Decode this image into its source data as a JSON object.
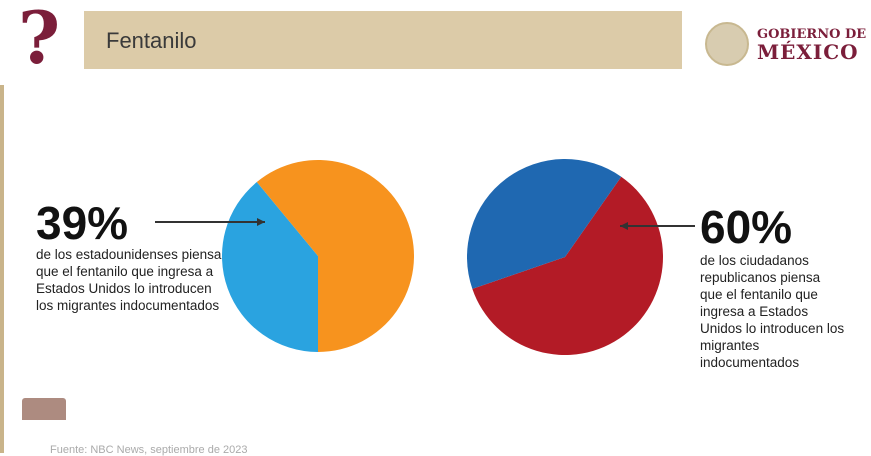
{
  "header": {
    "title": "Fentanilo",
    "logo_line1": "GOBIERNO DE",
    "logo_line2": "MÉXICO",
    "icon": "question-mark-icon"
  },
  "colors": {
    "blue": "#2aa3e0",
    "orange": "#f7931e",
    "navy_blue": "#1f68b1",
    "red": "#b31b26",
    "maroon": "#7b1e3a",
    "banner": "#dccba8"
  },
  "chart_data": [
    {
      "type": "pie",
      "slices": [
        {
          "label": "39%",
          "value": 39,
          "color": "#2aa3e0"
        },
        {
          "value": 61,
          "color": "#f7931e"
        }
      ],
      "annotation": {
        "value": "39%",
        "text": "de los estadounidenses piensa que el fentanilo que ingresa a Estados Unidos lo introducen los migrantes indocumentados"
      }
    },
    {
      "type": "pie",
      "slices": [
        {
          "label": "60%",
          "value": 60,
          "color": "#b31b26"
        },
        {
          "value": 40,
          "color": "#1f68b1"
        }
      ],
      "annotation": {
        "value": "60%",
        "text": "de los ciudadanos republicanos piensa que el fentanilo que ingresa a Estados Unidos lo introducen los migrantes indocumentados"
      }
    }
  ],
  "footer": {
    "source": "Fuente: NBC News, septiembre de 2023"
  }
}
